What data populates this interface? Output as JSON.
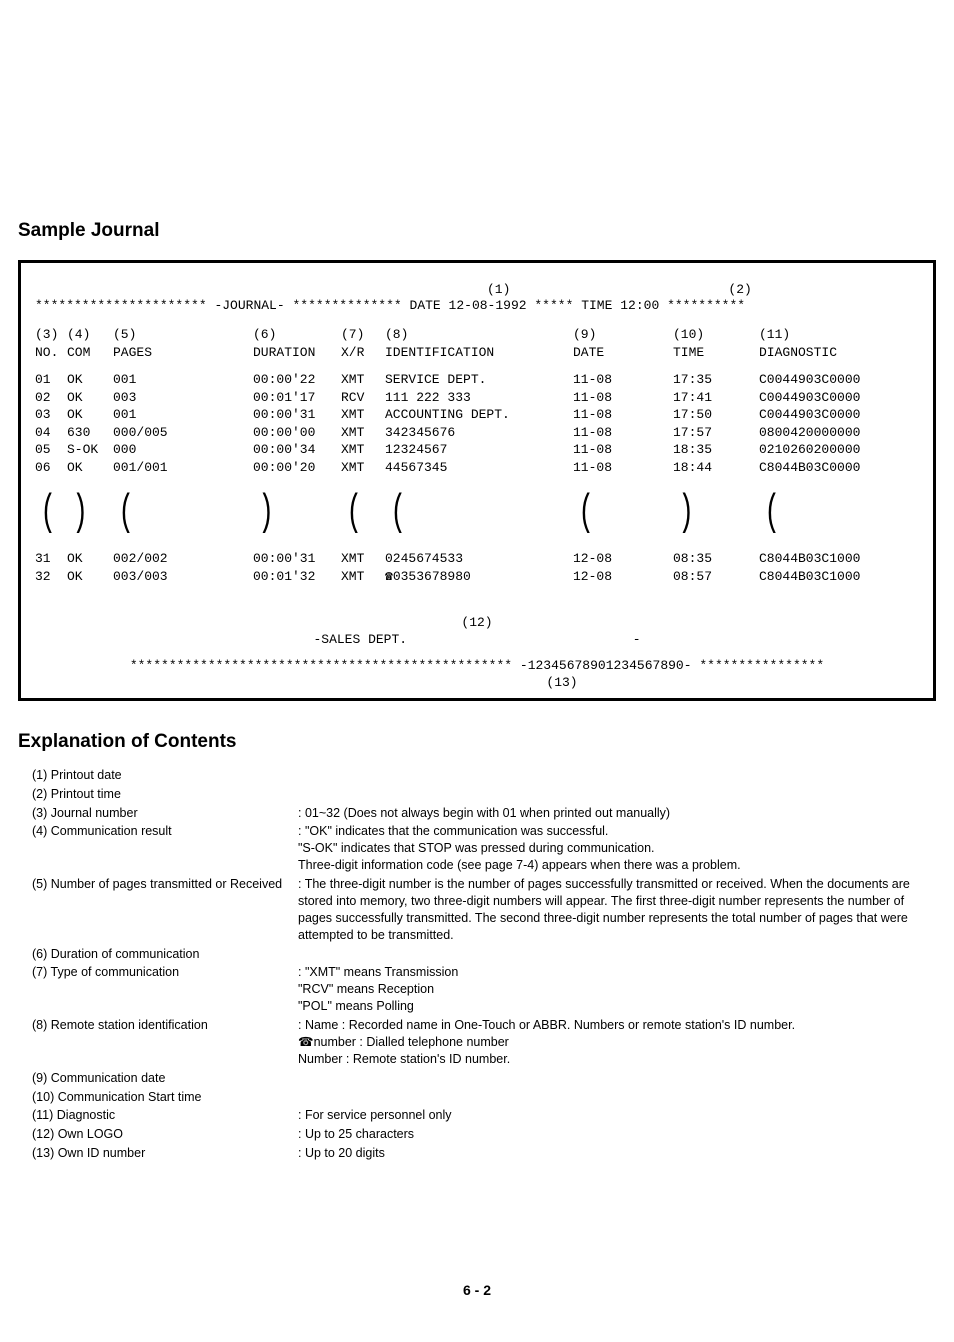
{
  "headings": {
    "sample": "Sample Journal",
    "explanation": "Explanation of Contents"
  },
  "journal": {
    "title": "-JOURNAL-",
    "stars_left": "**********************",
    "stars_mid": "**************",
    "date_label": "DATE",
    "date_value": "12-08-1992",
    "stars_small": "*****",
    "time_label": "TIME",
    "time_value": "12:00",
    "stars_right": "**********",
    "ref1": "(1)",
    "ref2": "(2)",
    "col_refs": [
      "(3)",
      "(4)",
      "(5)",
      "(6)",
      "(7)",
      "(8)",
      "(9)",
      "(10)",
      "(11)"
    ],
    "col_labels": [
      "NO.",
      "COM",
      "PAGES",
      "DURATION",
      "X/R",
      "IDENTIFICATION",
      "DATE",
      "TIME",
      "DIAGNOSTIC"
    ],
    "rows1": [
      {
        "no": "01",
        "com": "OK",
        "pages": "001",
        "dur": "00:00'22",
        "xr": "XMT",
        "id": "SERVICE DEPT.",
        "date": "11-08",
        "time": "17:35",
        "diag": "C0044903C0000"
      },
      {
        "no": "02",
        "com": "OK",
        "pages": "003",
        "dur": "00:01'17",
        "xr": "RCV",
        "id": "111 222 333",
        "date": "11-08",
        "time": "17:41",
        "diag": "C0044903C0000"
      },
      {
        "no": "03",
        "com": "OK",
        "pages": "001",
        "dur": "00:00'31",
        "xr": "XMT",
        "id": "ACCOUNTING DEPT.",
        "date": "11-08",
        "time": "17:50",
        "diag": "C0044903C0000"
      },
      {
        "no": "04",
        "com": "630",
        "pages": "000/005",
        "dur": "00:00'00",
        "xr": "XMT",
        "id": "342345676",
        "date": "11-08",
        "time": "17:57",
        "diag": "0800420000000"
      },
      {
        "no": "05",
        "com": "S-OK",
        "pages": "000",
        "dur": "00:00'34",
        "xr": "XMT",
        "id": "12324567",
        "date": "11-08",
        "time": "18:35",
        "diag": "0210260200000"
      },
      {
        "no": "06",
        "com": "OK",
        "pages": "001/001",
        "dur": "00:00'20",
        "xr": "XMT",
        "id": "44567345",
        "date": "11-08",
        "time": "18:44",
        "diag": "C8044B03C0000"
      }
    ],
    "rows2": [
      {
        "no": "31",
        "com": "OK",
        "pages": "002/002",
        "dur": "00:00'31",
        "xr": "XMT",
        "id": "0245674533",
        "date": "12-08",
        "time": "08:35",
        "diag": "C8044B03C1000"
      },
      {
        "no": "32",
        "com": "OK",
        "pages": "003/003",
        "dur": "00:01'32",
        "xr": "XMT",
        "id": "☎0353678980",
        "date": "12-08",
        "time": "08:57",
        "diag": "C8044B03C1000"
      }
    ],
    "footer_ref12": "(12)",
    "footer_logo": "-SALES DEPT.",
    "footer_dash": "-",
    "footer_stars_left": "*************************************************",
    "footer_id": "-12345678901234567890-",
    "footer_stars_right": "****************",
    "footer_ref13": "(13)"
  },
  "explanations": [
    {
      "n": "(1)",
      "label": "Printout date",
      "desc": []
    },
    {
      "n": "(2)",
      "label": "Printout time",
      "desc": []
    },
    {
      "n": "(3)",
      "label": "Journal number",
      "desc": [
        ": 01~32 (Does not always begin with 01 when printed out manually)"
      ]
    },
    {
      "n": "(4)",
      "label": "Communication result",
      "desc": [
        ": \"OK\" indicates that the communication was successful.",
        "  \"S-OK\" indicates that STOP was pressed during communication.",
        "  Three-digit information code (see page 7-4) appears when there was a problem."
      ]
    },
    {
      "n": "(5)",
      "label": "Number of pages transmitted or Received",
      "desc": [
        ": The three-digit number is the number of pages successfully transmitted or received. When the documents are stored into memory, two three-digit numbers will appear. The first three-digit number represents the number of pages successfully transmitted. The second three-digit number represents the total number of pages that were attempted to be transmitted."
      ]
    },
    {
      "n": "(6)",
      "label": "Duration of communication",
      "desc": []
    },
    {
      "n": "(7)",
      "label": "Type of communication",
      "desc": [
        ": \"XMT\" means Transmission",
        "  \"RCV\" means Reception",
        "  \"POL\" means Polling"
      ]
    },
    {
      "n": "(8)",
      "label": "Remote station identification",
      "desc": [
        ": Name : Recorded name in One-Touch or ABBR. Numbers or remote station's ID number.",
        "  ☎number : Dialled telephone number",
        "  Number : Remote station's ID number."
      ]
    },
    {
      "n": "(9)",
      "label": "Communication date",
      "desc": []
    },
    {
      "n": "(10)",
      "label": "Communication Start time",
      "desc": []
    },
    {
      "n": "(11)",
      "label": "Diagnostic",
      "desc": [
        ": For service personnel only"
      ]
    },
    {
      "n": "(12)",
      "label": "Own LOGO",
      "desc": [
        ": Up to 25 characters"
      ]
    },
    {
      "n": "(13)",
      "label": "Own ID number",
      "desc": [
        ": Up to 20 digits"
      ]
    }
  ],
  "page_number": "6 - 2"
}
